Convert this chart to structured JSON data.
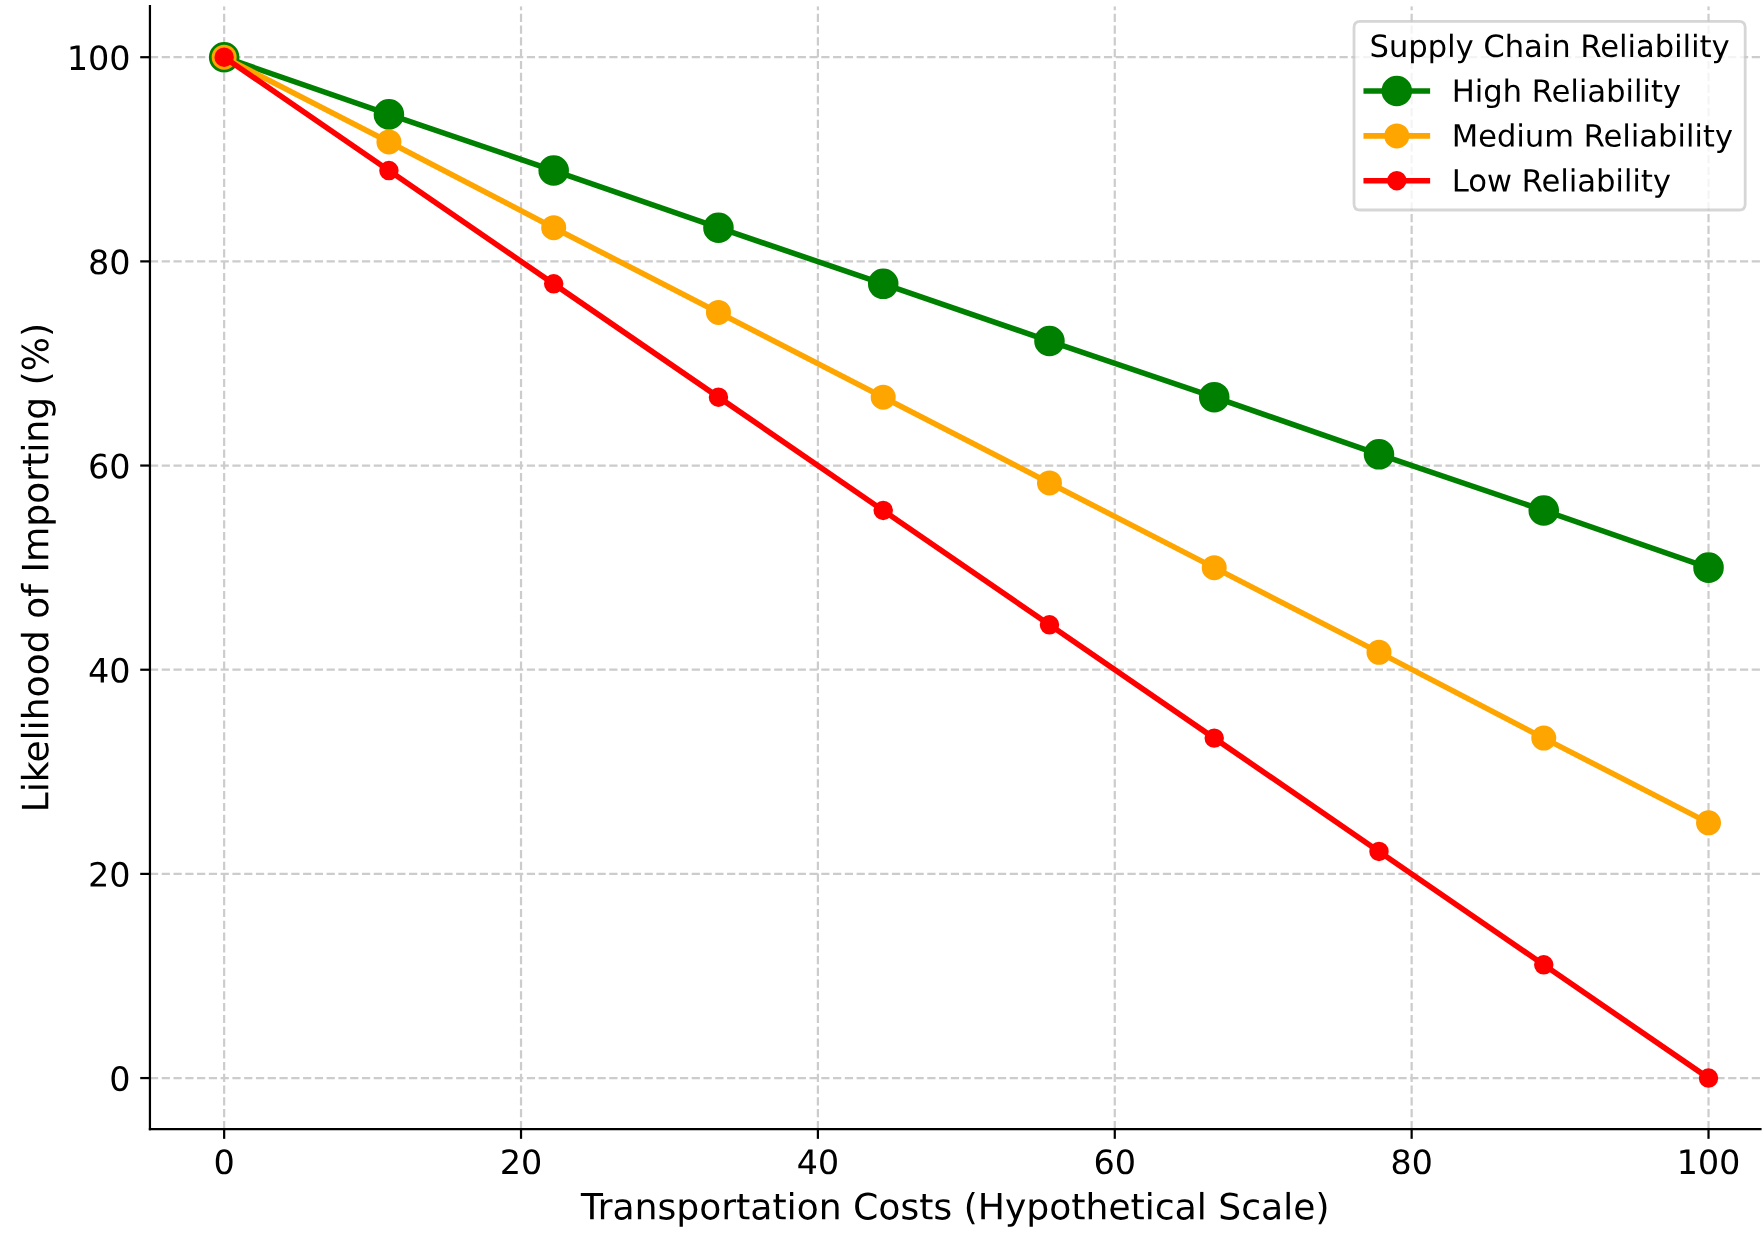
{
  "chart_data": {
    "type": "line",
    "xlabel": "Transportation Costs (Hypothetical Scale)",
    "ylabel": "Likelihood of Importing (%)",
    "legend_title": "Supply Chain Reliability",
    "legend": "top right",
    "grid": true,
    "marker": "circle",
    "line_style": "solid",
    "x": [
      0,
      11.1,
      22.2,
      33.3,
      44.4,
      55.6,
      66.7,
      77.8,
      88.9,
      100
    ],
    "series": [
      {
        "name": "High Reliability",
        "color": "#008000",
        "values": [
          100,
          94.4,
          88.9,
          83.3,
          77.8,
          72.2,
          66.7,
          61.1,
          55.6,
          50
        ]
      },
      {
        "name": "Medium Reliability",
        "color": "#ffa500",
        "values": [
          100,
          91.7,
          83.3,
          75,
          66.7,
          58.3,
          50,
          41.7,
          33.3,
          25
        ]
      },
      {
        "name": "Low Reliability",
        "color": "#ff0000",
        "values": [
          100,
          88.9,
          77.8,
          66.7,
          55.6,
          44.4,
          33.3,
          22.2,
          11.1,
          0
        ]
      }
    ],
    "xlim": [
      -5,
      103.5
    ],
    "ylim": [
      -5,
      105
    ],
    "xticks": [
      0,
      20,
      40,
      60,
      80,
      100
    ],
    "yticks": [
      0,
      20,
      40,
      60,
      80,
      100
    ]
  }
}
